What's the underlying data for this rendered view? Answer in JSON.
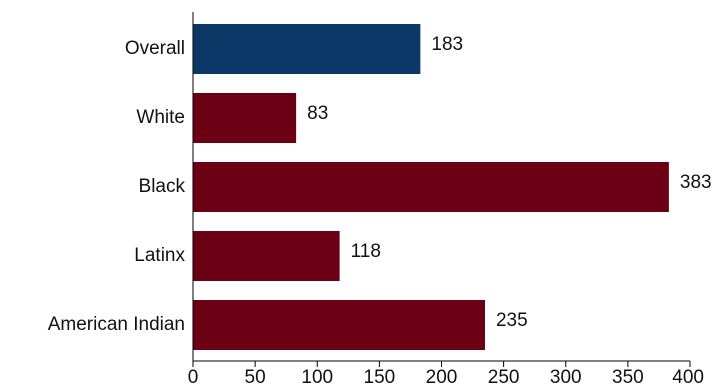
{
  "chart_data": {
    "type": "bar",
    "orientation": "horizontal",
    "title": "",
    "xlabel": "",
    "ylabel": "",
    "categories": [
      "Overall",
      "White",
      "Black",
      "Latinx",
      "American Indian"
    ],
    "values": [
      183,
      83,
      383,
      118,
      235
    ],
    "data_labels": [
      "183",
      "83",
      "383",
      "118",
      "235"
    ],
    "xlim": [
      0,
      400
    ],
    "xticks": [
      0,
      50,
      100,
      150,
      200,
      250,
      300,
      350,
      400
    ],
    "xtick_labels": [
      "0",
      "50",
      "100",
      "150",
      "200",
      "250",
      "300",
      "350",
      "400"
    ],
    "grid": false,
    "legend": "none",
    "highlight_category": "Overall",
    "colors": {
      "highlight": "#0b3866",
      "bar": "#6b0015",
      "axis": "#000000",
      "text": "#111111"
    }
  }
}
